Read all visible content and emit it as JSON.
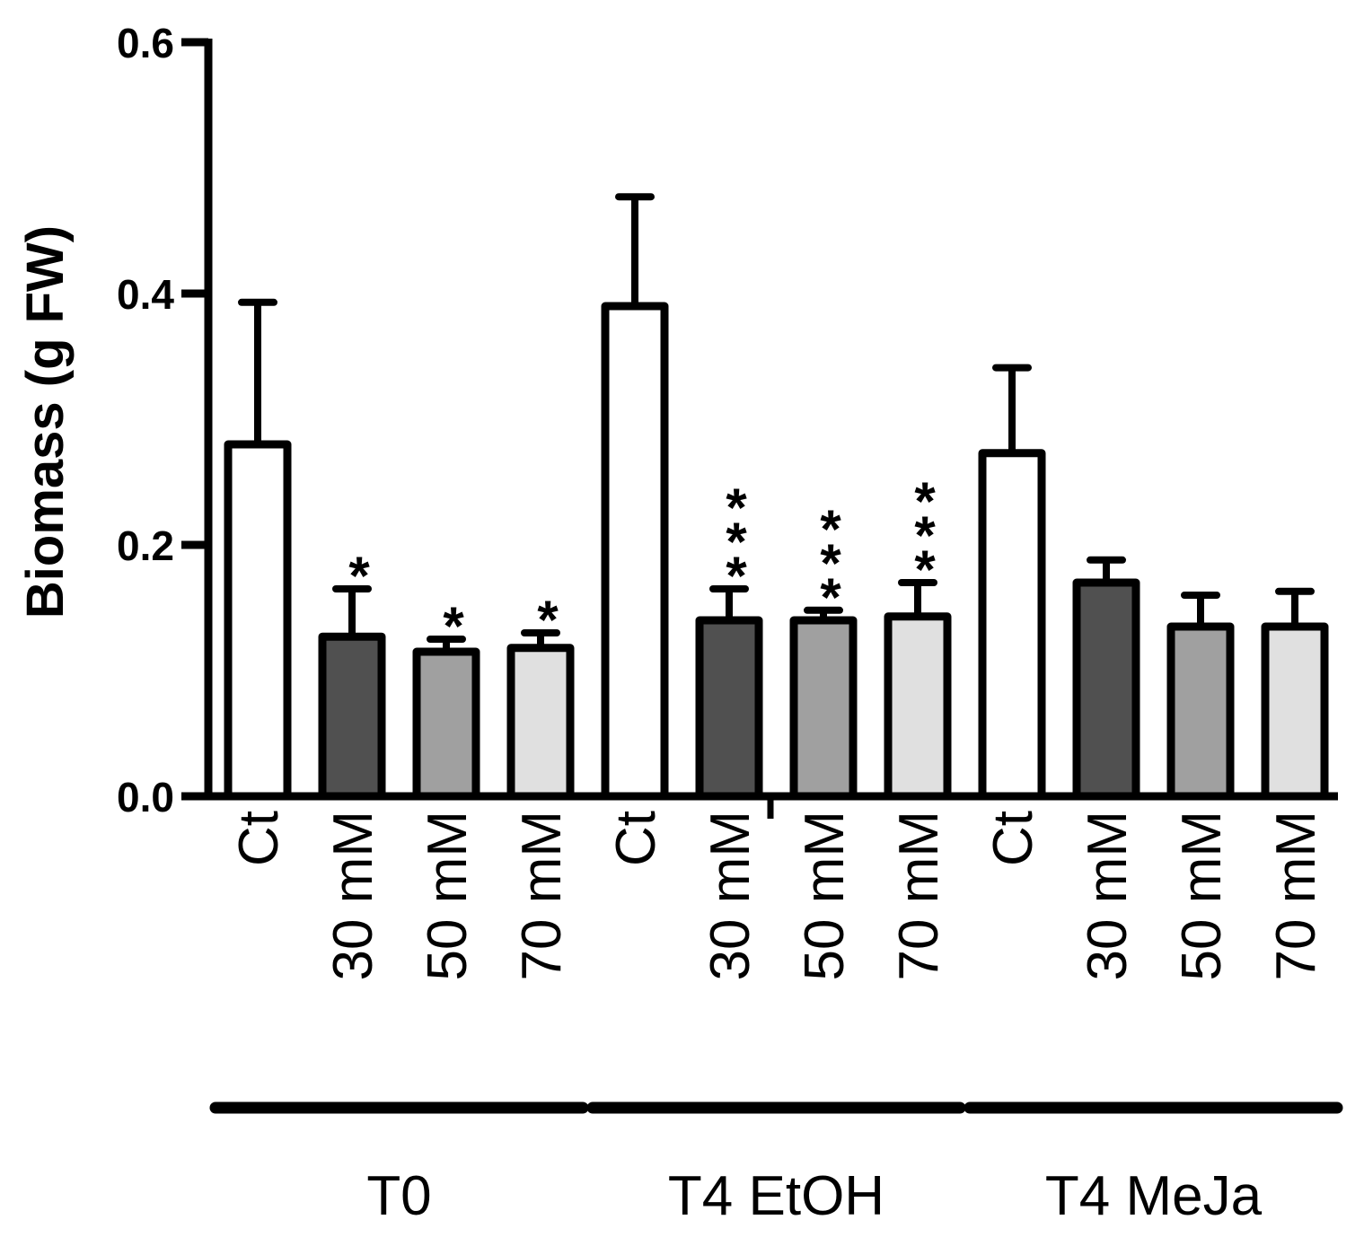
{
  "chart_data": {
    "type": "bar",
    "title": "",
    "xlabel": "",
    "ylabel": "Biomass (g FW)",
    "ylim": [
      0,
      0.6
    ],
    "yticks": [
      "0.0",
      "0.2",
      "0.4",
      "0.6"
    ],
    "grid": false,
    "categories": [
      "Ct",
      "30 mM",
      "50 mM",
      "70 mM",
      "Ct",
      "30 mM",
      "50 mM",
      "70 mM",
      "Ct",
      "30 mM",
      "50 mM",
      "70 mM"
    ],
    "values": [
      0.28,
      0.127,
      0.115,
      0.118,
      0.39,
      0.14,
      0.14,
      0.143,
      0.273,
      0.17,
      0.135,
      0.135
    ],
    "errors": [
      0.113,
      0.038,
      0.01,
      0.012,
      0.087,
      0.025,
      0.008,
      0.027,
      0.068,
      0.018,
      0.025,
      0.028
    ],
    "significance": [
      "",
      "*",
      "*",
      "*",
      "",
      "***",
      "***",
      "***",
      "",
      "",
      "",
      ""
    ],
    "bar_colors": [
      "#ffffff",
      "#505050",
      "#a0a0a0",
      "#e0e0e0",
      "#ffffff",
      "#505050",
      "#a0a0a0",
      "#e0e0e0",
      "#ffffff",
      "#505050",
      "#a0a0a0",
      "#e0e0e0"
    ],
    "groups": [
      {
        "label": "T0",
        "start": 0,
        "end": 3
      },
      {
        "label": "T4 EtOH",
        "start": 4,
        "end": 7
      },
      {
        "label": "T4 MeJa",
        "start": 8,
        "end": 11
      }
    ]
  }
}
